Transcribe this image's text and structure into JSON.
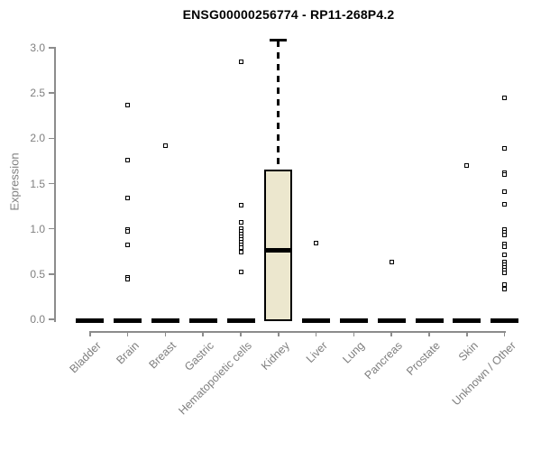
{
  "title": "ENSG00000256774 - RP11-268P4.2",
  "chart_data": {
    "type": "boxplot",
    "title": "ENSG00000256774 - RP11-268P4.2",
    "xlabel": "",
    "ylabel": "Expression",
    "ylim": [
      0.0,
      3.0
    ],
    "yticks": [
      0.0,
      0.5,
      1.0,
      1.5,
      2.0,
      2.5,
      3.0
    ],
    "grid": false,
    "legend": false,
    "categories": [
      "Bladder",
      "Brain",
      "Breast",
      "Gastric",
      "Hematopoietic cells",
      "Kidney",
      "Liver",
      "Lung",
      "Pancreas",
      "Prostate",
      "Skin",
      "Unknown / Other"
    ],
    "boxes": [
      {
        "category": "Bladder",
        "whisker_low": 0.0,
        "q1": 0.0,
        "median": 0.0,
        "q3": 0.0,
        "whisker_high": 0.0,
        "outliers": []
      },
      {
        "category": "Brain",
        "whisker_low": 0.0,
        "q1": 0.0,
        "median": 0.0,
        "q3": 0.0,
        "whisker_high": 0.0,
        "outliers": [
          2.37,
          1.76,
          1.34,
          0.99,
          0.97,
          0.82,
          0.46,
          0.44
        ]
      },
      {
        "category": "Breast",
        "whisker_low": 0.0,
        "q1": 0.0,
        "median": 0.0,
        "q3": 0.0,
        "whisker_high": 0.0,
        "outliers": [
          1.92
        ]
      },
      {
        "category": "Gastric",
        "whisker_low": 0.0,
        "q1": 0.0,
        "median": 0.0,
        "q3": 0.0,
        "whisker_high": 0.0,
        "outliers": []
      },
      {
        "category": "Hematopoietic cells",
        "whisker_low": 0.0,
        "q1": 0.0,
        "median": 0.0,
        "q3": 0.0,
        "whisker_high": 0.0,
        "outliers": [
          2.85,
          1.26,
          1.07,
          1.0,
          0.97,
          0.94,
          0.91,
          0.88,
          0.85,
          0.82,
          0.79,
          0.74,
          0.52
        ]
      },
      {
        "category": "Kidney",
        "whisker_low": 0.0,
        "q1": 0.0,
        "median": 0.76,
        "q3": 1.65,
        "whisker_high": 3.08,
        "outliers": []
      },
      {
        "category": "Liver",
        "whisker_low": 0.0,
        "q1": 0.0,
        "median": 0.0,
        "q3": 0.0,
        "whisker_high": 0.0,
        "outliers": [
          0.84
        ]
      },
      {
        "category": "Lung",
        "whisker_low": 0.0,
        "q1": 0.0,
        "median": 0.0,
        "q3": 0.0,
        "whisker_high": 0.0,
        "outliers": []
      },
      {
        "category": "Pancreas",
        "whisker_low": 0.0,
        "q1": 0.0,
        "median": 0.0,
        "q3": 0.0,
        "whisker_high": 0.0,
        "outliers": [
          0.63
        ]
      },
      {
        "category": "Prostate",
        "whisker_low": 0.0,
        "q1": 0.0,
        "median": 0.0,
        "q3": 0.0,
        "whisker_high": 0.0,
        "outliers": []
      },
      {
        "category": "Skin",
        "whisker_low": 0.0,
        "q1": 0.0,
        "median": 0.0,
        "q3": 0.0,
        "whisker_high": 0.0,
        "outliers": [
          1.7
        ]
      },
      {
        "category": "Unknown / Other",
        "whisker_low": 0.0,
        "q1": 0.0,
        "median": 0.0,
        "q3": 0.0,
        "whisker_high": 0.0,
        "outliers": [
          2.45,
          1.89,
          1.62,
          1.6,
          1.41,
          1.27,
          0.99,
          0.96,
          0.93,
          0.83,
          0.8,
          0.71,
          0.63,
          0.6,
          0.57,
          0.54,
          0.51,
          0.38,
          0.33
        ]
      }
    ],
    "colors": {
      "box_fill": "#ECE7CE",
      "box_border": "#000000",
      "median": "#000000",
      "outlier": "#000000",
      "axis_line": "#8c8c8c",
      "axis_text": "#7f7f7f",
      "title": "#000000"
    }
  }
}
